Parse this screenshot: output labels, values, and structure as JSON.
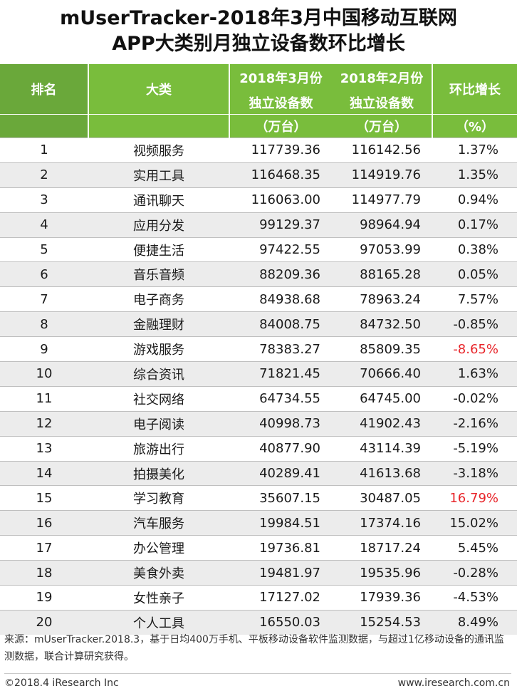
{
  "title": {
    "line1": "mUserTracker-2018年3月中国移动互联网",
    "line2": "APP大类别月独立设备数环比增长"
  },
  "table": {
    "headers": {
      "rank": "排名",
      "category": "大类",
      "mar_line1": "2018年3月份",
      "mar_line2": "独立设备数",
      "feb_line1": "2018年2月份",
      "feb_line2": "独立设备数",
      "growth": "环比增长",
      "unit_mar": "（万台）",
      "unit_feb": "（万台）",
      "unit_growth": "（%）"
    },
    "rows": [
      {
        "rank": "1",
        "category": "视频服务",
        "mar": "117739.36",
        "feb": "116142.56",
        "growth": "1.37%"
      },
      {
        "rank": "2",
        "category": "实用工具",
        "mar": "116468.35",
        "feb": "114919.76",
        "growth": "1.35%"
      },
      {
        "rank": "3",
        "category": "通讯聊天",
        "mar": "116063.00",
        "feb": "114977.79",
        "growth": "0.94%"
      },
      {
        "rank": "4",
        "category": "应用分发",
        "mar": "99129.37",
        "feb": "98964.94",
        "growth": "0.17%"
      },
      {
        "rank": "5",
        "category": "便捷生活",
        "mar": "97422.55",
        "feb": "97053.99",
        "growth": "0.38%"
      },
      {
        "rank": "6",
        "category": "音乐音频",
        "mar": "88209.36",
        "feb": "88165.28",
        "growth": "0.05%"
      },
      {
        "rank": "7",
        "category": "电子商务",
        "mar": "84938.68",
        "feb": "78963.24",
        "growth": "7.57%"
      },
      {
        "rank": "8",
        "category": "金融理财",
        "mar": "84008.75",
        "feb": "84732.50",
        "growth": "-0.85%"
      },
      {
        "rank": "9",
        "category": "游戏服务",
        "mar": "78383.27",
        "feb": "85809.35",
        "growth": "-8.65%"
      },
      {
        "rank": "10",
        "category": "综合资讯",
        "mar": "71821.45",
        "feb": "70666.40",
        "growth": "1.63%"
      },
      {
        "rank": "11",
        "category": "社交网络",
        "mar": "64734.55",
        "feb": "64745.00",
        "growth": "-0.02%"
      },
      {
        "rank": "12",
        "category": "电子阅读",
        "mar": "40998.73",
        "feb": "41902.43",
        "growth": "-2.16%"
      },
      {
        "rank": "13",
        "category": "旅游出行",
        "mar": "40877.90",
        "feb": "43114.39",
        "growth": "-5.19%"
      },
      {
        "rank": "14",
        "category": "拍摄美化",
        "mar": "40289.41",
        "feb": "41613.68",
        "growth": "-3.18%"
      },
      {
        "rank": "15",
        "category": "学习教育",
        "mar": "35607.15",
        "feb": "30487.05",
        "growth": "16.79%"
      },
      {
        "rank": "16",
        "category": "汽车服务",
        "mar": "19984.51",
        "feb": "17374.16",
        "growth": "15.02%"
      },
      {
        "rank": "17",
        "category": "办公管理",
        "mar": "19736.81",
        "feb": "18717.24",
        "growth": "5.45%"
      },
      {
        "rank": "18",
        "category": "美食外卖",
        "mar": "19481.97",
        "feb": "19535.96",
        "growth": "-0.28%"
      },
      {
        "rank": "19",
        "category": "女性亲子",
        "mar": "17127.02",
        "feb": "17939.36",
        "growth": "-4.53%"
      },
      {
        "rank": "20",
        "category": "个人工具",
        "mar": "16550.03",
        "feb": "15254.53",
        "growth": "8.49%"
      }
    ],
    "highlight_rows": [
      8,
      14
    ],
    "colors": {
      "header_green": "#79bd3c",
      "highlight_red": "#e8252a",
      "stripe_gray": "#ececec"
    }
  },
  "footnote": "来源：mUserTracker.2018.3，基于日均400万手机、平板移动设备软件监测数据，与超过1亿移动设备的通讯监测数据，联合计算研究获得。",
  "footer": {
    "left": "©2018.4 iResearch Inc",
    "right": "www.iresearch.com.cn"
  }
}
